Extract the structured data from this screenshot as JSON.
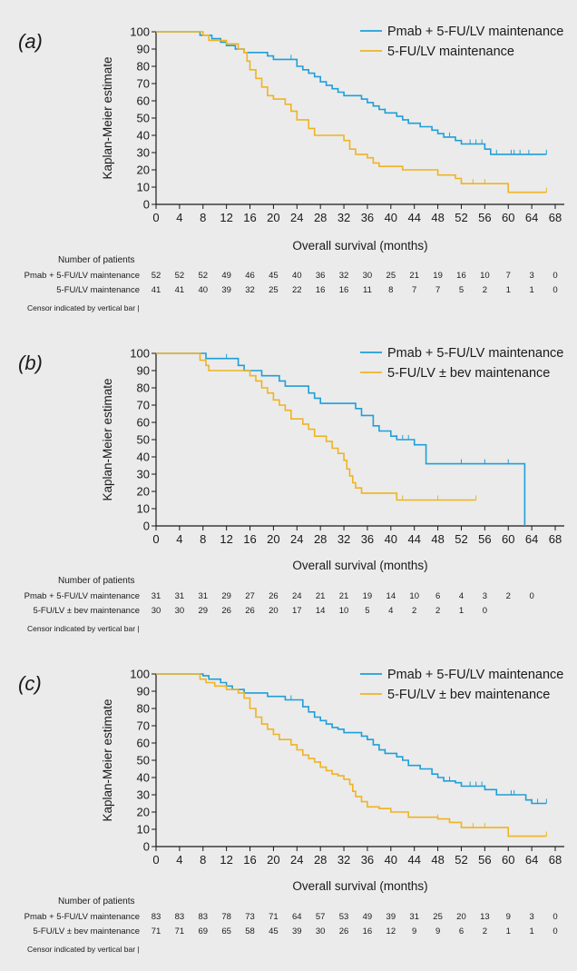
{
  "colors": {
    "pmab": "#1e9fd8",
    "control": "#f0b323",
    "axis": "#1a1a1a",
    "background": "#ebebeb"
  },
  "common": {
    "xlabel": "Overall survival (months)",
    "ylabel": "Kaplan-Meier estimate",
    "risk_heading": "Number of patients",
    "censor_note": "Censor indicated by vertical bar |",
    "x_ticks": [
      "0",
      "4",
      "8",
      "12",
      "16",
      "20",
      "24",
      "28",
      "32",
      "36",
      "40",
      "44",
      "48",
      "52",
      "56",
      "60",
      "64",
      "68"
    ],
    "y_ticks": [
      "0",
      "10",
      "20",
      "30",
      "40",
      "50",
      "60",
      "70",
      "80",
      "90",
      "100"
    ]
  },
  "chart_data": [
    {
      "type": "line",
      "panel": "(a)",
      "xlabel": "Overall survival (months)",
      "ylabel": "Kaplan-Meier estimate",
      "xlim": [
        0,
        68
      ],
      "ylim": [
        0,
        100
      ],
      "legend_position": "top-right",
      "series": [
        {
          "name": "Pmab + 5-FU/LV maintenance",
          "color_key": "pmab",
          "steps": [
            [
              0,
              100
            ],
            [
              7.5,
              98
            ],
            [
              9.5,
              96
            ],
            [
              11,
              94
            ],
            [
              12,
              92
            ],
            [
              13.5,
              90
            ],
            [
              15,
              88
            ],
            [
              19,
              86
            ],
            [
              20,
              84
            ],
            [
              23,
              84
            ],
            [
              24,
              80
            ],
            [
              25,
              78
            ],
            [
              26,
              76
            ],
            [
              27,
              74
            ],
            [
              28,
              71
            ],
            [
              29,
              69
            ],
            [
              30,
              67
            ],
            [
              31,
              65
            ],
            [
              32,
              63
            ],
            [
              35,
              61
            ],
            [
              36,
              59
            ],
            [
              37,
              57
            ],
            [
              38,
              55
            ],
            [
              39,
              53
            ],
            [
              41,
              51
            ],
            [
              42,
              49
            ],
            [
              43,
              47
            ],
            [
              45,
              45
            ],
            [
              47,
              43
            ],
            [
              48,
              41
            ],
            [
              49,
              39
            ],
            [
              51,
              37
            ],
            [
              52,
              35
            ],
            [
              56,
              32
            ],
            [
              57,
              29
            ],
            [
              66.5,
              29
            ]
          ],
          "censor_x": [
            23,
            39,
            50,
            53.5,
            54.5,
            55.5,
            56,
            58,
            60.5,
            61,
            62,
            63.5,
            66.5
          ],
          "risk": [
            "52",
            "52",
            "52",
            "49",
            "46",
            "45",
            "40",
            "36",
            "32",
            "30",
            "25",
            "21",
            "19",
            "16",
            "10",
            "7",
            "3",
            "0"
          ]
        },
        {
          "name": "5-FU/LV maintenance",
          "color_key": "control",
          "steps": [
            [
              0,
              100
            ],
            [
              8,
              98
            ],
            [
              9,
              95
            ],
            [
              12,
              93
            ],
            [
              14,
              90
            ],
            [
              15,
              88
            ],
            [
              15.5,
              83
            ],
            [
              16,
              78
            ],
            [
              17,
              73
            ],
            [
              18,
              68
            ],
            [
              19,
              63
            ],
            [
              20,
              61
            ],
            [
              22,
              58
            ],
            [
              23,
              54
            ],
            [
              24,
              49
            ],
            [
              26,
              44
            ],
            [
              27,
              40
            ],
            [
              32,
              37
            ],
            [
              33,
              32
            ],
            [
              34,
              29
            ],
            [
              36,
              27
            ],
            [
              37,
              24
            ],
            [
              38,
              22
            ],
            [
              42,
              20
            ],
            [
              48,
              17
            ],
            [
              51,
              15
            ],
            [
              52,
              12
            ],
            [
              60,
              7
            ],
            [
              66.5,
              7
            ]
          ],
          "censor_x": [
            54,
            56,
            66.5
          ],
          "risk": [
            "41",
            "41",
            "40",
            "39",
            "32",
            "25",
            "22",
            "16",
            "16",
            "11",
            "8",
            "7",
            "7",
            "5",
            "2",
            "1",
            "1",
            "0"
          ]
        }
      ]
    },
    {
      "type": "line",
      "panel": "(b)",
      "xlabel": "Overall survival (months)",
      "ylabel": "Kaplan-Meier estimate",
      "xlim": [
        0,
        68
      ],
      "ylim": [
        0,
        100
      ],
      "legend_position": "top-right",
      "series": [
        {
          "name": "Pmab + 5-FU/LV maintenance",
          "color_key": "pmab",
          "steps": [
            [
              0,
              100
            ],
            [
              8.5,
              97
            ],
            [
              14,
              93
            ],
            [
              15,
              90
            ],
            [
              18,
              87
            ],
            [
              21,
              84
            ],
            [
              22,
              81
            ],
            [
              26,
              77
            ],
            [
              27,
              74
            ],
            [
              28,
              71
            ],
            [
              34,
              68
            ],
            [
              35,
              64
            ],
            [
              37,
              58
            ],
            [
              38,
              55
            ],
            [
              40,
              52
            ],
            [
              41,
              50
            ],
            [
              44,
              47
            ],
            [
              46,
              36
            ],
            [
              62.8,
              36
            ],
            [
              62.8,
              0
            ]
          ],
          "censor_x": [
            12,
            41,
            42,
            43,
            52,
            56,
            60
          ],
          "risk": [
            "31",
            "31",
            "31",
            "29",
            "27",
            "26",
            "24",
            "21",
            "21",
            "19",
            "14",
            "10",
            "6",
            "4",
            "3",
            "2",
            "0",
            ""
          ]
        },
        {
          "name": "5-FU/LV ± bev maintenance",
          "color_key": "control",
          "steps": [
            [
              0,
              100
            ],
            [
              7.5,
              96
            ],
            [
              8.5,
              93
            ],
            [
              9,
              90
            ],
            [
              16,
              87
            ],
            [
              17,
              84
            ],
            [
              18,
              80
            ],
            [
              19,
              77
            ],
            [
              20,
              73
            ],
            [
              21,
              70
            ],
            [
              22,
              67
            ],
            [
              23,
              62
            ],
            [
              25,
              59
            ],
            [
              26,
              56
            ],
            [
              27,
              52
            ],
            [
              29,
              49
            ],
            [
              30,
              45
            ],
            [
              31,
              42
            ],
            [
              32,
              38
            ],
            [
              32.5,
              33
            ],
            [
              33,
              29
            ],
            [
              33.5,
              25
            ],
            [
              34,
              22
            ],
            [
              35,
              19
            ],
            [
              41,
              15
            ],
            [
              54.5,
              15
            ]
          ],
          "censor_x": [
            42,
            48,
            54.5
          ],
          "risk": [
            "30",
            "30",
            "29",
            "26",
            "26",
            "20",
            "17",
            "14",
            "10",
            "5",
            "4",
            "2",
            "2",
            "1",
            "0",
            "",
            "",
            ""
          ]
        }
      ]
    },
    {
      "type": "line",
      "panel": "(c)",
      "xlabel": "Overall survival (months)",
      "ylabel": "Kaplan-Meier estimate",
      "xlim": [
        0,
        68
      ],
      "ylim": [
        0,
        100
      ],
      "legend_position": "top-right",
      "series": [
        {
          "name": "Pmab + 5-FU/LV maintenance",
          "color_key": "pmab",
          "steps": [
            [
              0,
              100
            ],
            [
              8,
              99
            ],
            [
              9,
              97
            ],
            [
              11,
              95
            ],
            [
              12,
              93
            ],
            [
              13,
              91
            ],
            [
              15,
              89
            ],
            [
              19,
              87
            ],
            [
              22,
              85
            ],
            [
              25,
              81
            ],
            [
              26,
              78
            ],
            [
              27,
              75
            ],
            [
              28,
              73
            ],
            [
              29,
              71
            ],
            [
              30,
              69
            ],
            [
              31,
              68
            ],
            [
              32,
              66
            ],
            [
              35,
              64
            ],
            [
              36,
              62
            ],
            [
              37,
              59
            ],
            [
              38,
              56
            ],
            [
              39,
              54
            ],
            [
              41,
              52
            ],
            [
              42,
              50
            ],
            [
              43,
              47
            ],
            [
              45,
              45
            ],
            [
              47,
              42
            ],
            [
              48,
              40
            ],
            [
              49,
              38
            ],
            [
              51,
              37
            ],
            [
              52,
              35
            ],
            [
              56,
              33
            ],
            [
              58,
              30
            ],
            [
              63,
              27
            ],
            [
              64,
              25
            ],
            [
              66.5,
              25
            ]
          ],
          "censor_x": [
            23,
            39,
            50,
            53.5,
            54.5,
            55.5,
            56,
            58,
            60.5,
            61,
            63,
            64,
            65,
            66.5
          ],
          "risk": [
            "83",
            "83",
            "83",
            "78",
            "73",
            "71",
            "64",
            "57",
            "53",
            "49",
            "39",
            "31",
            "25",
            "20",
            "13",
            "9",
            "3",
            "0"
          ]
        },
        {
          "name": "5-FU/LV ± bev maintenance",
          "color_key": "control",
          "steps": [
            [
              0,
              100
            ],
            [
              7.5,
              97
            ],
            [
              8.5,
              95
            ],
            [
              10,
              93
            ],
            [
              12,
              91
            ],
            [
              14,
              89
            ],
            [
              15,
              86
            ],
            [
              16,
              80
            ],
            [
              17,
              75
            ],
            [
              18,
              71
            ],
            [
              19,
              68
            ],
            [
              20,
              65
            ],
            [
              21,
              62
            ],
            [
              23,
              59
            ],
            [
              24,
              56
            ],
            [
              25,
              53
            ],
            [
              26,
              51
            ],
            [
              27,
              49
            ],
            [
              28,
              46
            ],
            [
              29,
              44
            ],
            [
              30,
              42
            ],
            [
              31,
              41
            ],
            [
              32,
              39
            ],
            [
              33,
              36
            ],
            [
              33.5,
              32
            ],
            [
              34,
              29
            ],
            [
              35,
              26
            ],
            [
              36,
              23
            ],
            [
              38,
              22
            ],
            [
              40,
              20
            ],
            [
              43,
              17
            ],
            [
              48,
              16
            ],
            [
              50,
              14
            ],
            [
              52,
              11
            ],
            [
              60,
              6
            ],
            [
              66.5,
              6
            ]
          ],
          "censor_x": [
            48,
            54,
            56,
            66.5
          ],
          "risk": [
            "71",
            "71",
            "69",
            "65",
            "58",
            "45",
            "39",
            "30",
            "26",
            "16",
            "12",
            "9",
            "9",
            "6",
            "2",
            "1",
            "1",
            "0"
          ]
        }
      ]
    }
  ]
}
